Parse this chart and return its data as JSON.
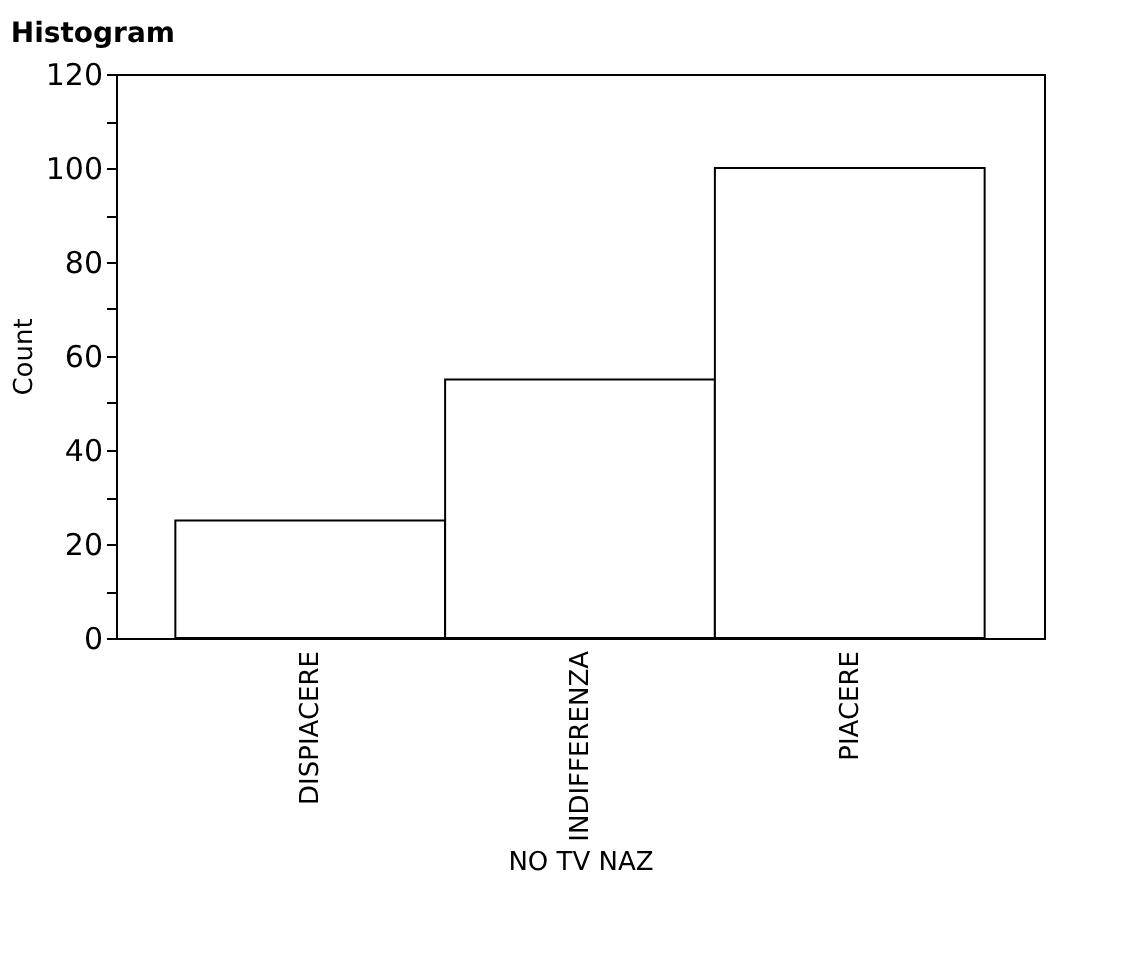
{
  "chart_data": {
    "type": "bar",
    "title": "Histogram",
    "xlabel": "NO TV NAZ",
    "ylabel": "Count",
    "categories": [
      "DISPIACERE",
      "INDIFFERENZA",
      "PIACERE"
    ],
    "values": [
      25,
      55,
      100
    ],
    "color": "#ffffff",
    "ylim": [
      0,
      120
    ],
    "yticks": [
      0,
      {
        "value": 10,
        "label": null
      },
      20,
      {
        "value": 30,
        "label": null
      },
      40,
      {
        "value": 50,
        "label": null
      },
      60,
      {
        "value": 70,
        "label": null
      },
      80,
      {
        "value": 90,
        "label": null
      },
      100,
      {
        "value": 110,
        "label": null
      },
      120
    ],
    "grid": false
  }
}
